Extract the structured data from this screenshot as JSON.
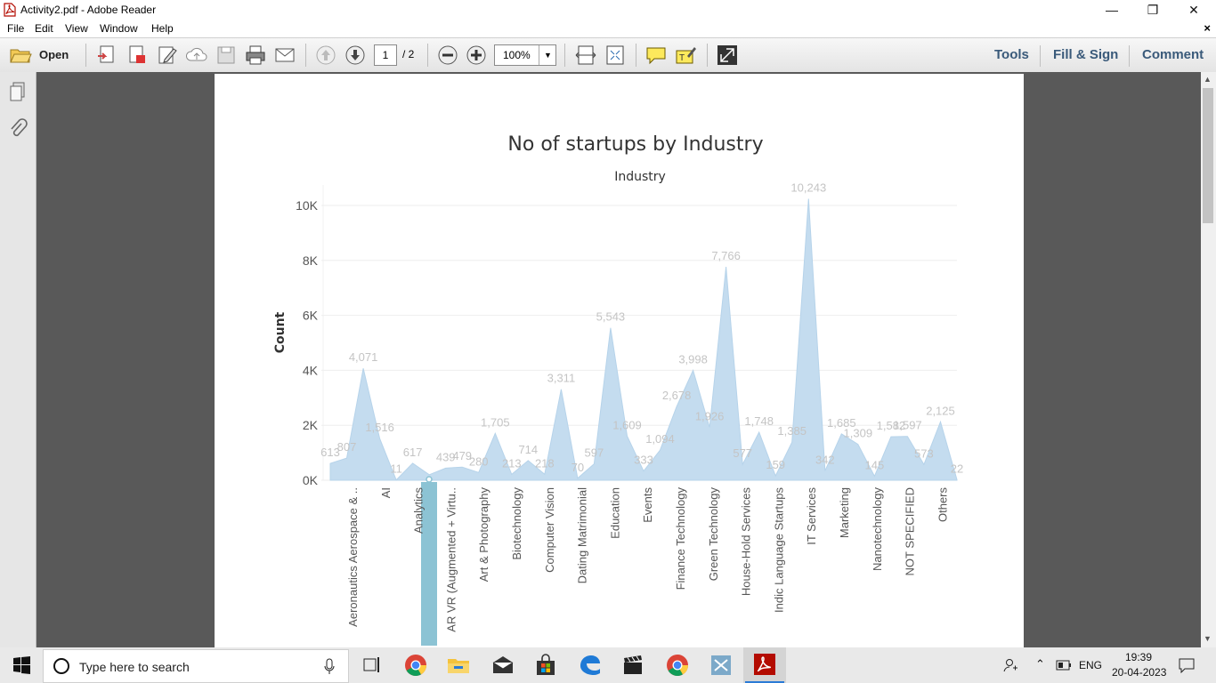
{
  "window": {
    "title": "Activity2.pdf - Adobe Reader",
    "minimize": "—",
    "restore": "❐",
    "close": "✕"
  },
  "menu": {
    "items": [
      "File",
      "Edit",
      "View",
      "Window",
      "Help"
    ],
    "close_doc": "×"
  },
  "toolbar": {
    "open_label": "Open",
    "page_current": "1",
    "page_total": "/ 2",
    "zoom": "100%",
    "tools_label": "Tools",
    "fill_sign_label": "Fill & Sign",
    "comment_label": "Comment"
  },
  "taskbar": {
    "search_placeholder": "Type here to search",
    "language": "ENG",
    "time": "19:39",
    "date": "20-04-2023"
  },
  "chart_data": {
    "type": "area",
    "title": "No of startups by Industry",
    "column_header": "Industry",
    "ylabel": "Count",
    "ylim": [
      0,
      10300
    ],
    "yticks": [
      {
        "value": 0,
        "label": "0K"
      },
      {
        "value": 2000,
        "label": "2K"
      },
      {
        "value": 4000,
        "label": "4K"
      },
      {
        "value": 6000,
        "label": "6K"
      },
      {
        "value": 8000,
        "label": "8K"
      },
      {
        "value": 10000,
        "label": "10K"
      }
    ],
    "highlighted_category": "AR VR (Augmented + Virtu..",
    "color": "#c4dcef",
    "highlight_color": "#8cc3d4",
    "points": [
      {
        "value": 613,
        "label": "613"
      },
      {
        "value": 807,
        "label": "807"
      },
      {
        "value": 4071,
        "label": "4,071"
      },
      {
        "value": 1516,
        "label": "1,516"
      },
      {
        "value": 11,
        "label": "11"
      },
      {
        "value": 617,
        "label": "617"
      },
      {
        "value": 200,
        "label": ""
      },
      {
        "value": 439,
        "label": "439"
      },
      {
        "value": 479,
        "label": "479"
      },
      {
        "value": 280,
        "label": "280"
      },
      {
        "value": 1705,
        "label": "1,705"
      },
      {
        "value": 213,
        "label": "213"
      },
      {
        "value": 714,
        "label": "714"
      },
      {
        "value": 218,
        "label": "218"
      },
      {
        "value": 3311,
        "label": "3,311"
      },
      {
        "value": 70,
        "label": "70"
      },
      {
        "value": 597,
        "label": "597"
      },
      {
        "value": 5543,
        "label": "5,543"
      },
      {
        "value": 1609,
        "label": "1,609"
      },
      {
        "value": 333,
        "label": "333"
      },
      {
        "value": 1094,
        "label": "1,094"
      },
      {
        "value": 2678,
        "label": "2,678"
      },
      {
        "value": 3998,
        "label": "3,998"
      },
      {
        "value": 1926,
        "label": "1,926"
      },
      {
        "value": 7766,
        "label": "7,766"
      },
      {
        "value": 577,
        "label": "577"
      },
      {
        "value": 1748,
        "label": "1,748"
      },
      {
        "value": 159,
        "label": "159"
      },
      {
        "value": 1385,
        "label": "1,385"
      },
      {
        "value": 10243,
        "label": "10,243"
      },
      {
        "value": 342,
        "label": "342"
      },
      {
        "value": 1685,
        "label": "1,685"
      },
      {
        "value": 1309,
        "label": "1,309"
      },
      {
        "value": 145,
        "label": "145"
      },
      {
        "value": 1582,
        "label": "1,582"
      },
      {
        "value": 1597,
        "label": "1,597"
      },
      {
        "value": 573,
        "label": "573"
      },
      {
        "value": 2125,
        "label": "2,125"
      },
      {
        "value": 22,
        "label": "22"
      }
    ],
    "categories": [
      "Aeronautics Aerospace & ..",
      "AI",
      "Analytics",
      "AR VR (Augmented + Virtu..",
      "Art & Photography",
      "Biotechnology",
      "Computer Vision",
      "Dating Matrimonial",
      "Education",
      "Events",
      "Finance Technology",
      "Green Technology",
      "House-Hold Services",
      "Indic Language Startups",
      "IT Services",
      "Marketing",
      "Nanotechnology",
      "NOT SPECIFIED",
      "Others"
    ]
  }
}
